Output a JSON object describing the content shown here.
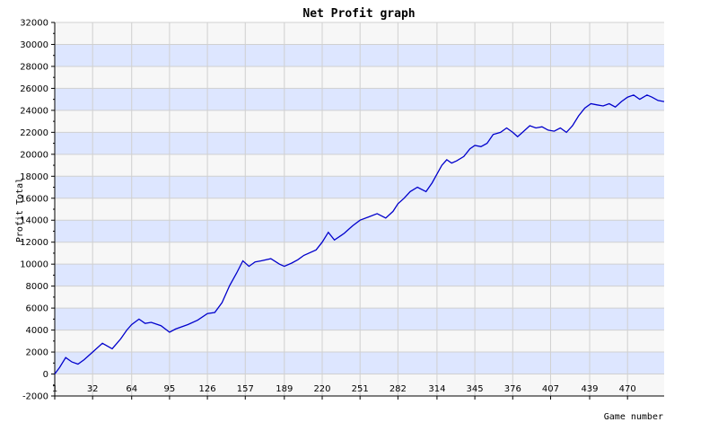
{
  "chart_data": {
    "type": "line",
    "title": "Net Profit graph",
    "xlabel": "Game number",
    "ylabel": "Profit Total",
    "xlim": [
      1,
      500
    ],
    "ylim": [
      -2000,
      32000
    ],
    "y_ticks": [
      -2000,
      0,
      2000,
      4000,
      6000,
      8000,
      10000,
      12000,
      14000,
      16000,
      18000,
      20000,
      22000,
      24000,
      26000,
      28000,
      30000,
      32000
    ],
    "x_ticks": [
      1,
      32,
      64,
      95,
      126,
      157,
      189,
      220,
      251,
      282,
      314,
      345,
      376,
      407,
      439,
      470
    ],
    "x_tick_labels": [
      "1",
      "32",
      "64",
      "95",
      "126",
      "157",
      "189",
      "220",
      "251",
      "282",
      "314",
      "345",
      "376",
      "407",
      "439",
      "470"
    ],
    "grid": true,
    "band_colors": [
      "#f7f7f7",
      "#dde6ff"
    ],
    "line_color": "#0000cc",
    "series": [
      {
        "x": [
          1,
          5,
          10,
          15,
          20,
          25,
          32,
          40,
          48,
          55,
          60,
          64,
          70,
          75,
          80,
          88,
          95,
          100,
          110,
          118,
          126,
          132,
          138,
          144,
          150,
          155,
          160,
          165,
          170,
          178,
          185,
          189,
          195,
          200,
          205,
          215,
          220,
          225,
          230,
          238,
          242,
          245,
          251,
          258,
          265,
          272,
          278,
          282,
          287,
          292,
          298,
          305,
          310,
          314,
          318,
          322,
          326,
          330,
          336,
          341,
          345,
          350,
          355,
          360,
          366,
          371,
          376,
          380,
          384,
          390,
          395,
          400,
          405,
          410,
          415,
          420,
          425,
          430,
          435,
          440,
          445,
          450,
          455,
          460,
          465,
          470,
          475,
          480,
          486,
          490,
          495,
          500
        ],
        "values": [
          0,
          600,
          1500,
          1100,
          900,
          1300,
          2000,
          2800,
          2300,
          3200,
          4000,
          4500,
          5000,
          4600,
          4700,
          4400,
          3800,
          4100,
          4500,
          4900,
          5500,
          5600,
          6500,
          8000,
          9200,
          10300,
          9800,
          10200,
          10300,
          10500,
          10000,
          9800,
          10100,
          10400,
          10800,
          11300,
          12000,
          12900,
          12200,
          12800,
          13200,
          13500,
          14000,
          14300,
          14600,
          14200,
          14800,
          15500,
          16000,
          16600,
          17000,
          16600,
          17400,
          18200,
          19000,
          19500,
          19200,
          19400,
          19800,
          20500,
          20800,
          20700,
          21000,
          21800,
          22000,
          22400,
          22000,
          21600,
          22000,
          22600,
          22400,
          22500,
          22200,
          22100,
          22400,
          22000,
          22600,
          23500,
          24200,
          24600,
          24500,
          24400,
          24600,
          24300,
          24800,
          25200,
          25400,
          25000,
          25400,
          25200,
          24900,
          24800
        ]
      }
    ]
  }
}
